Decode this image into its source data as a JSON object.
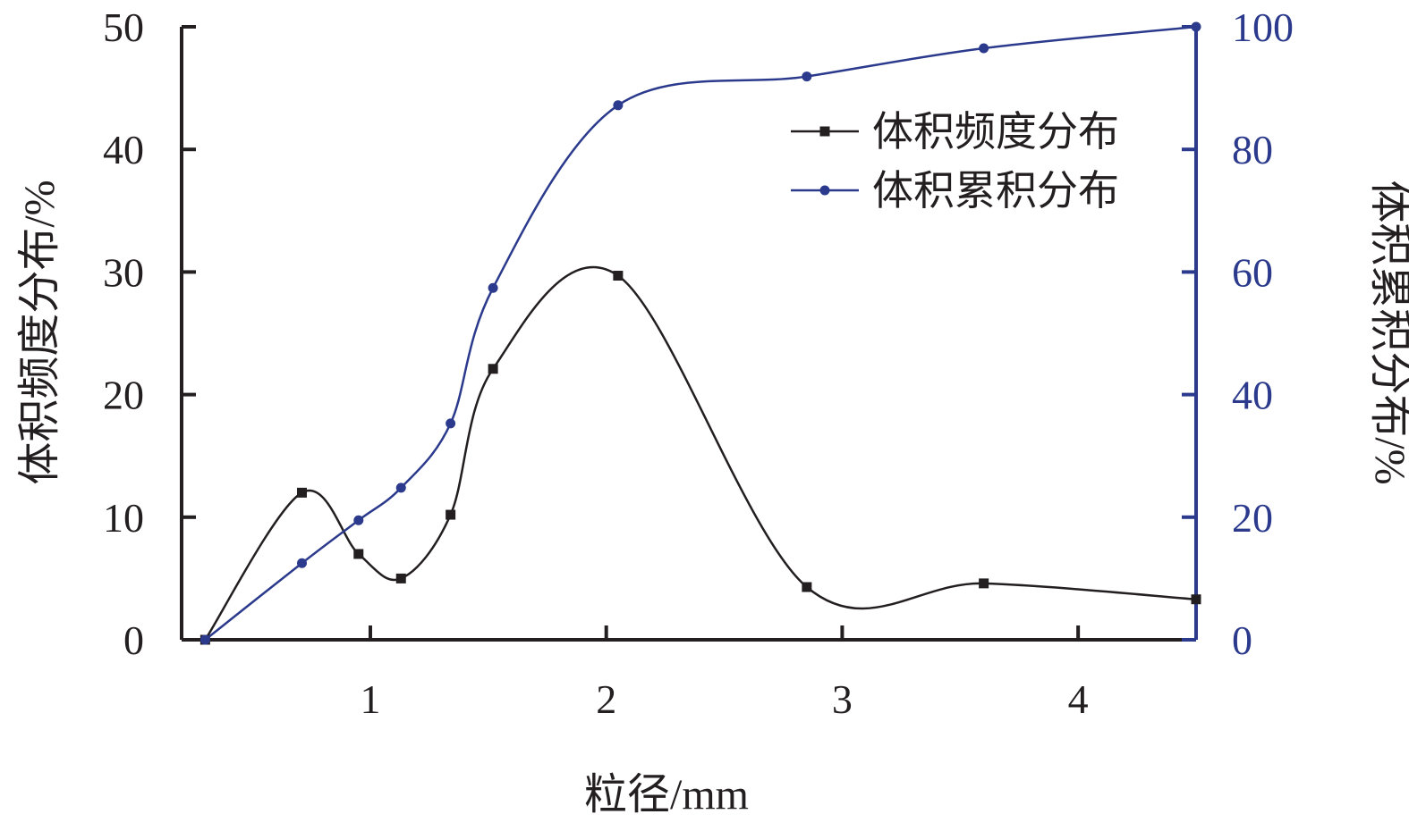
{
  "chart_data": {
    "type": "line",
    "xlabel": "粒径/mm",
    "ylabel_left": "体积频度分布/%",
    "ylabel_right": "体积累积分布/%",
    "xlim": [
      0.2,
      4.5
    ],
    "ylim_left": [
      0,
      50
    ],
    "ylim_right": [
      0,
      100
    ],
    "x_ticks": [
      1,
      2,
      3,
      4
    ],
    "y_left_ticks": [
      0,
      10,
      20,
      30,
      40,
      50
    ],
    "y_right_ticks": [
      0,
      20,
      40,
      60,
      80,
      100
    ],
    "legend_position": "top-right",
    "series": [
      {
        "name": "体积频度分布",
        "axis": "left",
        "color": "#231f20",
        "marker": "square",
        "x": [
          0.3,
          0.71,
          0.95,
          1.13,
          1.34,
          1.52,
          2.05,
          2.85,
          3.6,
          4.5
        ],
        "y": [
          0,
          12.0,
          7.0,
          5.0,
          10.2,
          22.1,
          29.7,
          4.3,
          4.6,
          3.3
        ]
      },
      {
        "name": "体积累积分布",
        "axis": "right",
        "color": "#2b3a8c",
        "marker": "circle",
        "x": [
          0.3,
          0.71,
          0.95,
          1.13,
          1.34,
          1.52,
          2.05,
          2.85,
          3.6,
          4.5
        ],
        "y": [
          0,
          12.5,
          19.5,
          24.8,
          35.3,
          57.4,
          87.2,
          91.9,
          96.5,
          100
        ]
      }
    ]
  }
}
